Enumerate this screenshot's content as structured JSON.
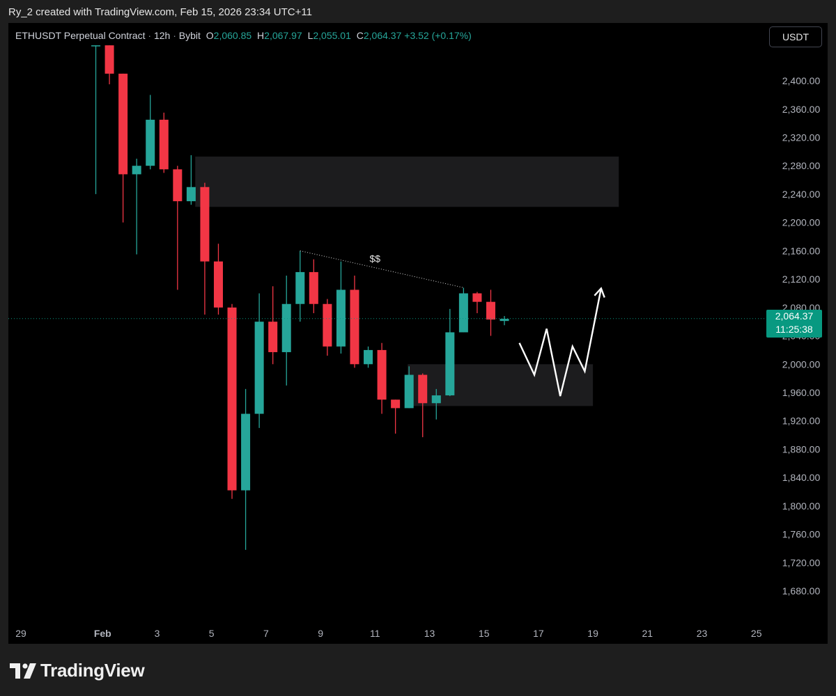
{
  "caption": "Ry_2 created with TradingView.com, Feb 15, 2026 23:34 UTC+11",
  "legend": {
    "symbol": "ETHUSDT Perpetual Contract",
    "sep": "·",
    "interval": "12h",
    "exchange": "Bybit",
    "o_label": "O",
    "o_value": "2,060.85",
    "h_label": "H",
    "h_value": "2,067.97",
    "l_label": "L",
    "l_value": "2,055.01",
    "c_label": "C",
    "c_value": "2,064.37",
    "change": "+3.52 (+0.17%)"
  },
  "currency_button": "USDT",
  "price_tag": {
    "price": "2,064.37",
    "countdown": "11:25:38"
  },
  "annotation_text": "$$",
  "footer": {
    "brand": "TradingView"
  },
  "colors": {
    "up": "#26a69a",
    "down": "#f23645",
    "background": "#000000",
    "zone": "#1c1c1e",
    "axis_text": "#b2b5be",
    "current_price": "#089981"
  },
  "icons": {
    "logo": "tradingview-logo-icon",
    "projection": "arrow-up-icon"
  },
  "chart_data": {
    "type": "candlestick",
    "y_range": [
      1640,
      2450
    ],
    "y_ticks": [
      1680,
      1720,
      1760,
      1800,
      1840,
      1880,
      1920,
      1960,
      2000,
      2040,
      2080,
      2120,
      2160,
      2200,
      2240,
      2280,
      2320,
      2360,
      2400
    ],
    "y_tick_labels": [
      "1,680.00",
      "1,720.00",
      "1,760.00",
      "1,800.00",
      "1,840.00",
      "1,880.00",
      "1,920.00",
      "1,960.00",
      "2,000.00",
      "2,040.00",
      "2,080.00",
      "2,120.00",
      "2,160.00",
      "2,200.00",
      "2,240.00",
      "2,280.00",
      "2,320.00",
      "2,360.00",
      "2,400.00"
    ],
    "x_range": [
      29.0,
      57.2
    ],
    "x_ticks": [
      {
        "x": 29,
        "label": "29"
      },
      {
        "x": 32,
        "label": "Feb"
      },
      {
        "x": 34,
        "label": "3"
      },
      {
        "x": 36,
        "label": "5"
      },
      {
        "x": 38,
        "label": "7"
      },
      {
        "x": 40,
        "label": "9"
      },
      {
        "x": 42,
        "label": "11"
      },
      {
        "x": 44,
        "label": "13"
      },
      {
        "x": 46,
        "label": "15"
      },
      {
        "x": 48,
        "label": "17"
      },
      {
        "x": 50,
        "label": "19"
      },
      {
        "x": 52,
        "label": "21"
      },
      {
        "x": 54,
        "label": "23"
      },
      {
        "x": 56,
        "label": "25"
      }
    ],
    "candles": [
      {
        "t": 31.75,
        "o": 2450,
        "h": 2450,
        "l": 2240,
        "c": 2450
      },
      {
        "t": 32.25,
        "o": 2450,
        "h": 2450,
        "l": 2395,
        "c": 2410
      },
      {
        "t": 32.75,
        "o": 2410,
        "h": 2410,
        "l": 2200,
        "c": 2268
      },
      {
        "t": 33.25,
        "o": 2268,
        "h": 2290,
        "l": 2155,
        "c": 2280
      },
      {
        "t": 33.75,
        "o": 2280,
        "h": 2380,
        "l": 2275,
        "c": 2345
      },
      {
        "t": 34.25,
        "o": 2345,
        "h": 2355,
        "l": 2270,
        "c": 2275
      },
      {
        "t": 34.75,
        "o": 2275,
        "h": 2280,
        "l": 2105,
        "c": 2230
      },
      {
        "t": 35.25,
        "o": 2230,
        "h": 2295,
        "l": 2225,
        "c": 2250
      },
      {
        "t": 35.75,
        "o": 2250,
        "h": 2256,
        "l": 2070,
        "c": 2145
      },
      {
        "t": 36.25,
        "o": 2145,
        "h": 2170,
        "l": 2070,
        "c": 2080
      },
      {
        "t": 36.75,
        "o": 2080,
        "h": 2085,
        "l": 1810,
        "c": 1822
      },
      {
        "t": 37.25,
        "o": 1822,
        "h": 1965,
        "l": 1738,
        "c": 1930
      },
      {
        "t": 37.75,
        "o": 1930,
        "h": 2100,
        "l": 1910,
        "c": 2060
      },
      {
        "t": 38.25,
        "o": 2060,
        "h": 2110,
        "l": 2000,
        "c": 2017
      },
      {
        "t": 38.75,
        "o": 2017,
        "h": 2125,
        "l": 1970,
        "c": 2085
      },
      {
        "t": 39.25,
        "o": 2085,
        "h": 2160,
        "l": 2060,
        "c": 2130
      },
      {
        "t": 39.75,
        "o": 2130,
        "h": 2148,
        "l": 2072,
        "c": 2085
      },
      {
        "t": 40.25,
        "o": 2085,
        "h": 2092,
        "l": 2012,
        "c": 2025
      },
      {
        "t": 40.75,
        "o": 2025,
        "h": 2145,
        "l": 2015,
        "c": 2105
      },
      {
        "t": 41.25,
        "o": 2105,
        "h": 2125,
        "l": 1995,
        "c": 2000
      },
      {
        "t": 41.75,
        "o": 2000,
        "h": 2025,
        "l": 1995,
        "c": 2020
      },
      {
        "t": 42.25,
        "o": 2020,
        "h": 2030,
        "l": 1930,
        "c": 1950
      },
      {
        "t": 42.75,
        "o": 1950,
        "h": 1950,
        "l": 1902,
        "c": 1938
      },
      {
        "t": 43.25,
        "o": 1938,
        "h": 1997,
        "l": 1938,
        "c": 1985
      },
      {
        "t": 43.75,
        "o": 1985,
        "h": 1987,
        "l": 1897,
        "c": 1945
      },
      {
        "t": 44.25,
        "o": 1945,
        "h": 1965,
        "l": 1922,
        "c": 1956
      },
      {
        "t": 44.75,
        "o": 1956,
        "h": 2078,
        "l": 1955,
        "c": 2045
      },
      {
        "t": 45.25,
        "o": 2045,
        "h": 2108,
        "l": 2045,
        "c": 2100
      },
      {
        "t": 45.75,
        "o": 2100,
        "h": 2102,
        "l": 2072,
        "c": 2088
      },
      {
        "t": 46.25,
        "o": 2088,
        "h": 2105,
        "l": 2040,
        "c": 2063
      },
      {
        "t": 46.75,
        "o": 2061,
        "h": 2068,
        "l": 2055,
        "c": 2064
      }
    ],
    "zones": [
      {
        "x0": 35.4,
        "x1": 50.95,
        "y0": 2222,
        "y1": 2293
      },
      {
        "x0": 43.2,
        "x1": 50.0,
        "y0": 1941,
        "y1": 2000
      }
    ],
    "trendline": {
      "x0": 39.25,
      "y0": 2160,
      "x1": 45.25,
      "y1": 2108
    },
    "annotation": {
      "x": 42.0,
      "y": 2144
    },
    "current_price": 2064.37,
    "projection": [
      {
        "x": 47.3,
        "y": 2030
      },
      {
        "x": 47.85,
        "y": 1985
      },
      {
        "x": 48.3,
        "y": 2050
      },
      {
        "x": 48.8,
        "y": 1955
      },
      {
        "x": 49.25,
        "y": 2025
      },
      {
        "x": 49.7,
        "y": 1990
      },
      {
        "x": 50.3,
        "y": 2107
      }
    ]
  }
}
